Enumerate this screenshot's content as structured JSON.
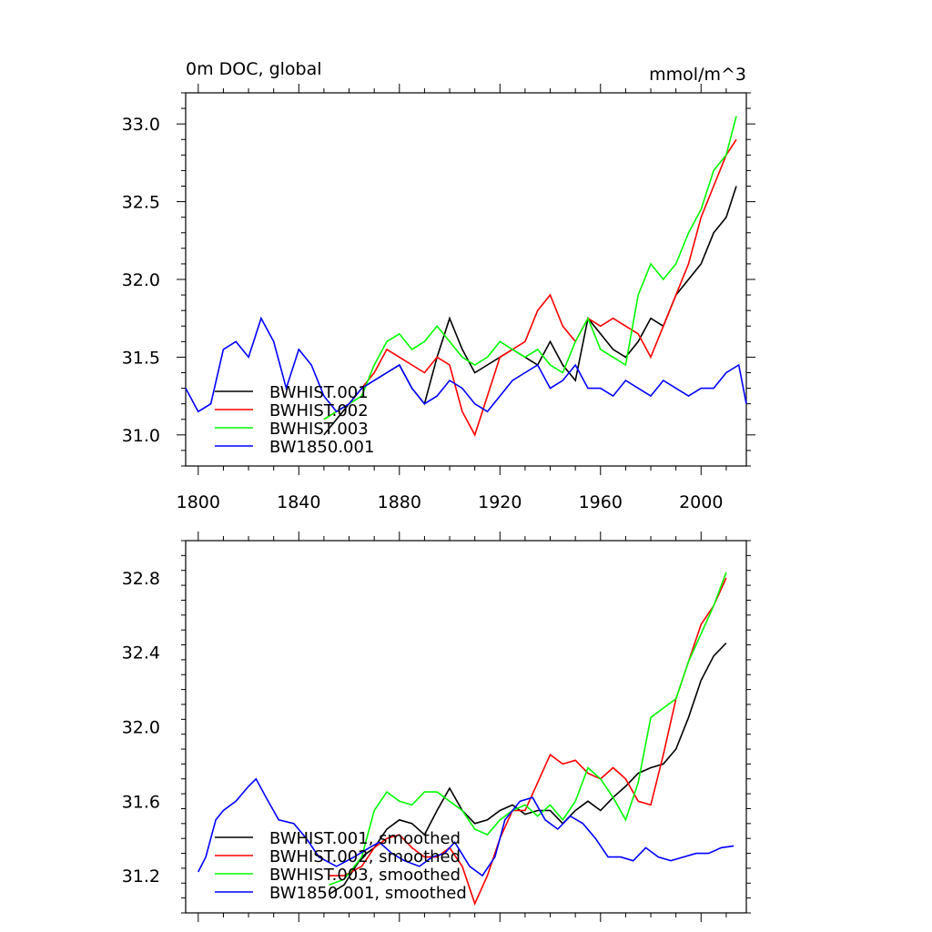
{
  "figure": {
    "title_left": "0m DOC, global",
    "title_right": "mmol/m^3"
  },
  "chart_data": [
    {
      "type": "line",
      "title": "0m DOC, global",
      "units": "mmol/m^3",
      "xlim": [
        1795,
        2018
      ],
      "ylim": [
        30.8,
        33.2
      ],
      "xticks": [
        1800,
        1840,
        1880,
        1920,
        1960,
        2000
      ],
      "xtick_labels": [
        "1800",
        "1840",
        "1880",
        "1920",
        "1960",
        "2000"
      ],
      "yticks": [
        31.0,
        31.5,
        32.0,
        32.5,
        33.0
      ],
      "ytick_labels": [
        "31.0",
        "31.5",
        "32.0",
        "32.5",
        "33.0"
      ],
      "legend_position": "bottom-left",
      "series": [
        {
          "name": "BWHIST.001",
          "color": "#000000",
          "x": [
            1850,
            1855,
            1860,
            1865,
            1870,
            1875,
            1880,
            1885,
            1890,
            1895,
            1900,
            1905,
            1910,
            1915,
            1920,
            1925,
            1930,
            1935,
            1940,
            1945,
            1950,
            1955,
            1960,
            1965,
            1970,
            1975,
            1980,
            1985,
            1990,
            1995,
            2000,
            2005,
            2010,
            2014
          ],
          "values": [
            31.0,
            31.1,
            31.2,
            31.3,
            31.35,
            31.4,
            31.45,
            31.3,
            31.2,
            31.5,
            31.75,
            31.55,
            31.4,
            31.45,
            31.5,
            31.55,
            31.5,
            31.45,
            31.6,
            31.45,
            31.35,
            31.75,
            31.65,
            31.55,
            31.5,
            31.6,
            31.75,
            31.7,
            31.9,
            32.0,
            32.1,
            32.3,
            32.4,
            32.6
          ]
        },
        {
          "name": "BWHIST.002",
          "color": "#ff0000",
          "x": [
            1850,
            1855,
            1860,
            1865,
            1870,
            1875,
            1880,
            1885,
            1890,
            1895,
            1900,
            1905,
            1910,
            1915,
            1920,
            1925,
            1930,
            1935,
            1940,
            1945,
            1950,
            1955,
            1960,
            1965,
            1970,
            1975,
            1980,
            1985,
            1990,
            1995,
            2000,
            2005,
            2010,
            2014
          ],
          "values": [
            31.1,
            31.15,
            31.2,
            31.3,
            31.4,
            31.55,
            31.5,
            31.45,
            31.4,
            31.5,
            31.45,
            31.15,
            31.0,
            31.25,
            31.5,
            31.55,
            31.6,
            31.8,
            31.9,
            31.7,
            31.6,
            31.75,
            31.7,
            31.75,
            31.7,
            31.65,
            31.5,
            31.7,
            31.9,
            32.1,
            32.4,
            32.6,
            32.8,
            32.9
          ]
        },
        {
          "name": "BWHIST.003",
          "color": "#00ff00",
          "x": [
            1850,
            1855,
            1860,
            1865,
            1870,
            1875,
            1880,
            1885,
            1890,
            1895,
            1900,
            1905,
            1910,
            1915,
            1920,
            1925,
            1930,
            1935,
            1940,
            1945,
            1950,
            1955,
            1960,
            1965,
            1970,
            1975,
            1980,
            1985,
            1990,
            1995,
            2000,
            2005,
            2010,
            2014
          ],
          "values": [
            31.1,
            31.15,
            31.2,
            31.25,
            31.45,
            31.6,
            31.65,
            31.55,
            31.6,
            31.7,
            31.6,
            31.5,
            31.45,
            31.5,
            31.6,
            31.55,
            31.5,
            31.55,
            31.45,
            31.4,
            31.6,
            31.75,
            31.55,
            31.5,
            31.45,
            31.9,
            32.1,
            32.0,
            32.1,
            32.3,
            32.45,
            32.7,
            32.8,
            33.05
          ]
        },
        {
          "name": "BW1850.001",
          "color": "#0000ff",
          "x": [
            1795,
            1800,
            1805,
            1810,
            1815,
            1820,
            1825,
            1830,
            1835,
            1840,
            1845,
            1850,
            1855,
            1860,
            1865,
            1870,
            1875,
            1880,
            1885,
            1890,
            1895,
            1900,
            1905,
            1910,
            1915,
            1920,
            1925,
            1930,
            1935,
            1940,
            1945,
            1950,
            1955,
            1960,
            1965,
            1970,
            1975,
            1980,
            1985,
            1990,
            1995,
            2000,
            2005,
            2010,
            2015,
            2018
          ],
          "values": [
            31.3,
            31.15,
            31.2,
            31.55,
            31.6,
            31.5,
            31.75,
            31.6,
            31.3,
            31.55,
            31.45,
            31.25,
            31.15,
            31.2,
            31.3,
            31.35,
            31.4,
            31.45,
            31.3,
            31.2,
            31.25,
            31.35,
            31.3,
            31.2,
            31.15,
            31.25,
            31.35,
            31.4,
            31.45,
            31.3,
            31.35,
            31.45,
            31.3,
            31.3,
            31.25,
            31.35,
            31.3,
            31.25,
            31.35,
            31.3,
            31.25,
            31.3,
            31.3,
            31.4,
            31.45,
            31.2
          ]
        }
      ]
    },
    {
      "type": "line",
      "title": "",
      "xlim": [
        1795,
        2018
      ],
      "ylim": [
        31.0,
        33.0
      ],
      "xticks": [
        1800,
        1840,
        1880,
        1920,
        1960,
        2000
      ],
      "xtick_labels": [],
      "yticks": [
        31.2,
        31.6,
        32.0,
        32.4,
        32.8
      ],
      "ytick_labels": [
        "31.2",
        "31.6",
        "32.0",
        "32.4",
        "32.8"
      ],
      "legend_position": "bottom-left",
      "series": [
        {
          "name": "BWHIST.001, smoothed",
          "color": "#000000",
          "x": [
            1852,
            1858,
            1865,
            1870,
            1875,
            1880,
            1885,
            1890,
            1895,
            1900,
            1905,
            1910,
            1915,
            1920,
            1925,
            1930,
            1935,
            1940,
            1945,
            1950,
            1955,
            1960,
            1965,
            1970,
            1975,
            1980,
            1985,
            1990,
            1995,
            2000,
            2005,
            2010
          ],
          "values": [
            31.1,
            31.15,
            31.3,
            31.35,
            31.45,
            31.5,
            31.48,
            31.42,
            31.55,
            31.67,
            31.55,
            31.48,
            31.5,
            31.55,
            31.58,
            31.53,
            31.55,
            31.55,
            31.48,
            31.55,
            31.6,
            31.55,
            31.62,
            31.68,
            31.75,
            31.78,
            31.8,
            31.88,
            32.05,
            32.25,
            32.38,
            32.45
          ]
        },
        {
          "name": "BWHIST.002, smoothed",
          "color": "#ff0000",
          "x": [
            1852,
            1858,
            1865,
            1870,
            1875,
            1880,
            1885,
            1890,
            1895,
            1900,
            1905,
            1910,
            1915,
            1920,
            1925,
            1930,
            1935,
            1940,
            1945,
            1950,
            1955,
            1960,
            1965,
            1970,
            1975,
            1980,
            1985,
            1990,
            1995,
            2000,
            2005,
            2010
          ],
          "values": [
            31.2,
            31.2,
            31.25,
            31.35,
            31.4,
            31.42,
            31.35,
            31.3,
            31.3,
            31.35,
            31.25,
            31.05,
            31.2,
            31.4,
            31.55,
            31.55,
            31.7,
            31.85,
            31.8,
            31.82,
            31.75,
            31.72,
            31.78,
            31.72,
            31.6,
            31.58,
            31.85,
            32.15,
            32.35,
            32.55,
            32.65,
            32.8
          ]
        },
        {
          "name": "BWHIST.003, smoothed",
          "color": "#00ff00",
          "x": [
            1852,
            1858,
            1865,
            1870,
            1875,
            1880,
            1885,
            1890,
            1895,
            1900,
            1905,
            1910,
            1915,
            1920,
            1925,
            1930,
            1935,
            1940,
            1945,
            1950,
            1955,
            1960,
            1965,
            1970,
            1975,
            1980,
            1985,
            1990,
            1995,
            2000,
            2005,
            2010
          ],
          "values": [
            31.15,
            31.18,
            31.3,
            31.55,
            31.65,
            31.6,
            31.58,
            31.65,
            31.65,
            31.6,
            31.55,
            31.45,
            31.42,
            31.5,
            31.55,
            31.58,
            31.52,
            31.58,
            31.5,
            31.6,
            31.78,
            31.72,
            31.62,
            31.5,
            31.7,
            32.05,
            32.1,
            32.15,
            32.35,
            32.5,
            32.65,
            32.83
          ]
        },
        {
          "name": "BW1850.001, smoothed",
          "color": "#0000ff",
          "x": [
            1800,
            1803,
            1807,
            1810,
            1815,
            1820,
            1823,
            1827,
            1832,
            1838,
            1843,
            1848,
            1855,
            1862,
            1868,
            1872,
            1877,
            1882,
            1888,
            1893,
            1898,
            1902,
            1908,
            1913,
            1918,
            1922,
            1928,
            1933,
            1938,
            1943,
            1948,
            1953,
            1958,
            1963,
            1968,
            1973,
            1978,
            1983,
            1988,
            1993,
            1998,
            2003,
            2008,
            2013
          ],
          "values": [
            31.22,
            31.3,
            31.5,
            31.55,
            31.6,
            31.68,
            31.72,
            31.62,
            31.5,
            31.48,
            31.4,
            31.3,
            31.25,
            31.3,
            31.35,
            31.38,
            31.32,
            31.28,
            31.25,
            31.3,
            31.32,
            31.38,
            31.25,
            31.2,
            31.3,
            31.5,
            31.6,
            31.62,
            31.5,
            31.45,
            31.52,
            31.48,
            31.4,
            31.3,
            31.3,
            31.28,
            31.35,
            31.3,
            31.28,
            31.3,
            31.32,
            31.32,
            31.35,
            31.36
          ]
        }
      ]
    }
  ]
}
